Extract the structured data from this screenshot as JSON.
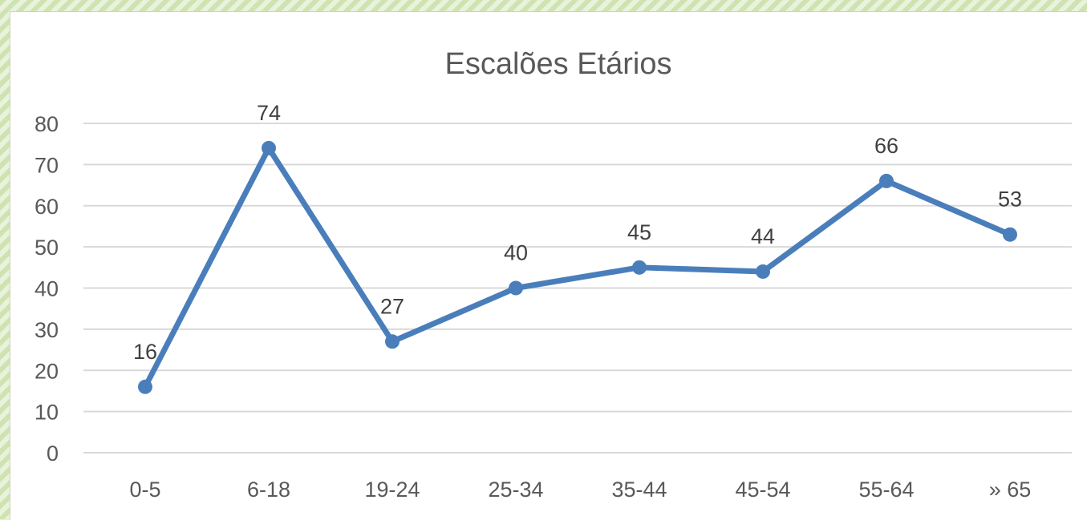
{
  "chart_data": {
    "type": "line",
    "title": "Escalões Etários",
    "xlabel": "",
    "ylabel": "",
    "categories": [
      "0-5",
      "6-18",
      "19-24",
      "25-34",
      "35-44",
      "45-54",
      "55-64",
      "» 65"
    ],
    "series": [
      {
        "values": [
          16,
          74,
          27,
          40,
          45,
          44,
          66,
          53
        ],
        "color": "#4a7ebb"
      }
    ],
    "ylim": [
      0,
      80
    ],
    "yticks": [
      0,
      10,
      20,
      30,
      40,
      50,
      60,
      70,
      80
    ],
    "grid": true,
    "legend": "none",
    "data_labels": true
  },
  "colors": {
    "line": "#4a7ebb",
    "grid": "#d9d9d9",
    "text": "#595959"
  }
}
